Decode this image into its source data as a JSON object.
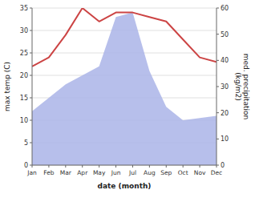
{
  "chart_data": {
    "type": "line",
    "categories": [
      "Jan",
      "Feb",
      "Mar",
      "Apr",
      "May",
      "Jun",
      "Jul",
      "Aug",
      "Sep",
      "Oct",
      "Nov",
      "Dec"
    ],
    "series": [
      {
        "type": "area",
        "color": "#aab4e8",
        "values": [
          12,
          15,
          18,
          20,
          22,
          33,
          34,
          21,
          13,
          10,
          10.5,
          11
        ]
      },
      {
        "type": "line",
        "color": "#cc4444",
        "values": [
          22,
          24,
          29,
          35,
          32,
          34,
          34,
          33,
          32,
          28,
          24,
          23
        ]
      }
    ],
    "xlabel": "date (month)",
    "ylabel": "max temp (C)",
    "y2label": "med. precipitation\n(kg/m2)",
    "ylim": [
      0,
      35
    ],
    "yticks": [
      0,
      5,
      10,
      15,
      20,
      25,
      30,
      35
    ],
    "y2lim": [
      0,
      60
    ],
    "y2ticks": [
      0,
      10,
      20,
      30,
      40,
      50,
      60
    ],
    "grid": true
  }
}
